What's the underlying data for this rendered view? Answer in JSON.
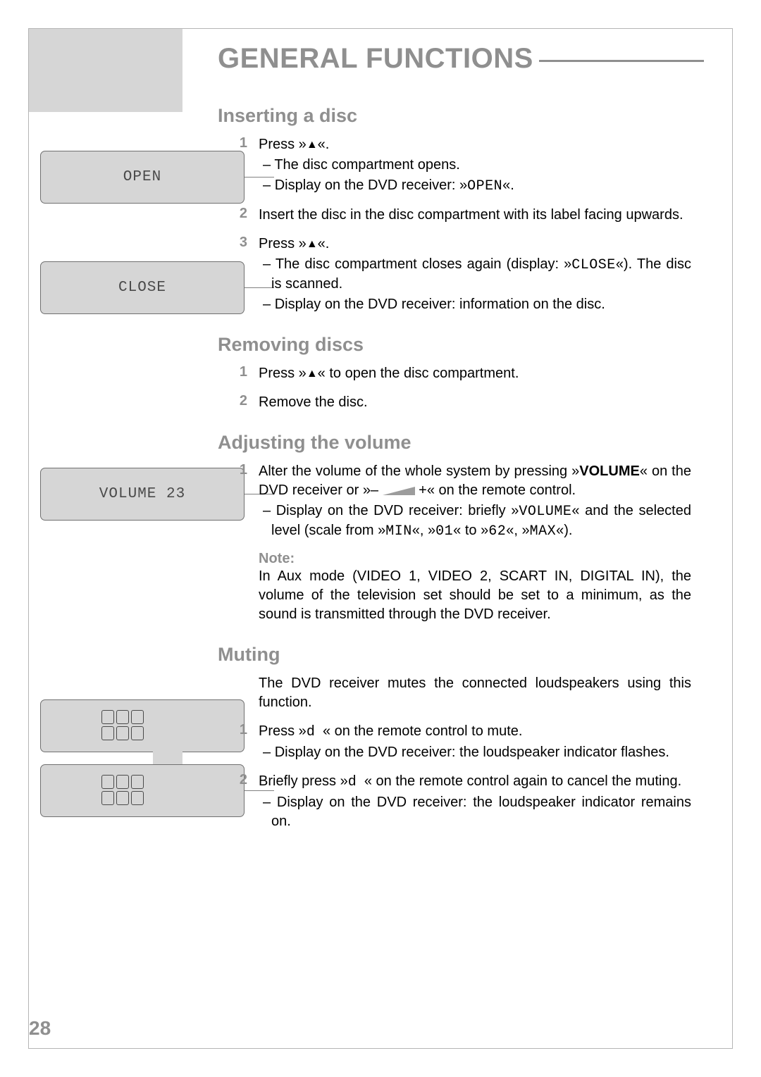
{
  "title": "GENERAL FUNCTIONS",
  "page_number": "28",
  "colors": {
    "grey_text": "#8f8f8f",
    "panel_bg": "#d6d6d6",
    "panel_border": "#707070",
    "body_text": "#000000",
    "page_bg": "#ffffff",
    "connector": "#808080"
  },
  "panels": {
    "open": "OPEN",
    "close": "CLOSE",
    "volume": "VOLUME 23"
  },
  "sections": {
    "inserting": {
      "heading": "Inserting a disc",
      "s1_press_prefix": "Press »",
      "s1_press_suffix": "«.",
      "s1_sub1": "The disc compartment opens.",
      "s1_sub2_a": "Display on the DVD receiver: »",
      "s1_sub2_b": "OPEN",
      "s1_sub2_c": "«.",
      "s2": "Insert the disc in the disc compartment with its label facing upwards.",
      "s3_press_prefix": "Press »",
      "s3_press_suffix": "«.",
      "s3_sub1_a": "The disc compartment closes again (display: »",
      "s3_sub1_b": "CLOSE",
      "s3_sub1_c": "«). The disc is scanned.",
      "s3_sub2": "Display on the DVD receiver: information on the disc."
    },
    "removing": {
      "heading": "Removing discs",
      "s1_a": "Press »",
      "s1_b": "« to open the disc compartment.",
      "s2": "Remove the disc."
    },
    "volume": {
      "heading": "Adjusting the volume",
      "s1_a": "Alter the volume of the whole system by pressing »",
      "s1_b": "VOLUME",
      "s1_c": "« on the DVD receiver or »– ",
      "s1_d": " +« on the remote control.",
      "s1_sub_a": "Display on the DVD receiver: briefly »",
      "s1_sub_b": "VOLUME",
      "s1_sub_c": "« and the selected level (scale from »",
      "s1_sub_d": "MIN",
      "s1_sub_e": "«, »",
      "s1_sub_f": "01",
      "s1_sub_g": "« to »",
      "s1_sub_h": "62",
      "s1_sub_i": "«, »",
      "s1_sub_j": "MAX",
      "s1_sub_k": "«).",
      "note_label": "Note:",
      "note_body": "In Aux mode (VIDEO 1, VIDEO 2, SCART IN, DIGITAL IN), the volume of the television set should be set to a minimum, as the sound is transmitted through the DVD receiver."
    },
    "muting": {
      "heading": "Muting",
      "intro": "The DVD receiver mutes the connected loudspeakers using this function.",
      "s1_a": "Press »",
      "s1_m": "d",
      "s1_b": "« on the remote control to mute.",
      "s1_sub": "Display on the DVD receiver: the loudspeaker indicator flashes.",
      "s2_a": "Briefly press »",
      "s2_m": "d",
      "s2_b": "« on the remote control again to cancel the muting.",
      "s2_sub": "Display on the DVD receiver: the loudspeaker indicator remains on."
    }
  },
  "nums": {
    "one": "1",
    "two": "2",
    "three": "3"
  }
}
